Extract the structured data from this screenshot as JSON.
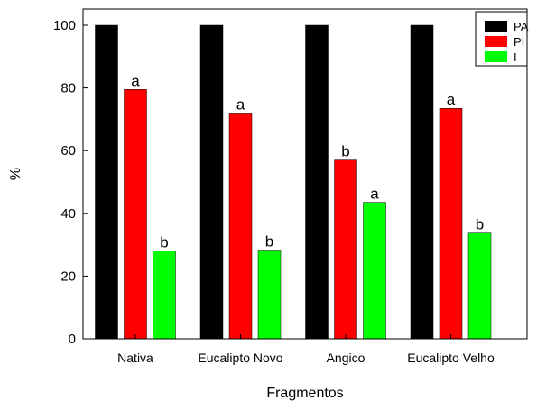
{
  "chart_data": {
    "type": "bar",
    "xlabel": "Fragmentos",
    "ylabel": "%",
    "ylim": [
      0,
      100
    ],
    "yticks": [
      0,
      20,
      40,
      60,
      80,
      100
    ],
    "categories": [
      "Nativa",
      "Eucalipto Novo",
      "Angico",
      "Eucalipto Velho"
    ],
    "series": [
      {
        "name": "PA",
        "color": "#000000",
        "values": [
          100,
          100,
          100,
          100
        ],
        "labels": [
          "",
          "",
          "",
          ""
        ]
      },
      {
        "name": "PI",
        "color": "#ff0000",
        "values": [
          79.5,
          72,
          57,
          73.5
        ],
        "labels": [
          "a",
          "a",
          "b",
          "a"
        ]
      },
      {
        "name": "I",
        "color": "#00ff00",
        "values": [
          28,
          28.3,
          43.5,
          33.7
        ],
        "labels": [
          "b",
          "b",
          "a",
          "b"
        ]
      }
    ],
    "legend": "top-right",
    "grid": false
  }
}
